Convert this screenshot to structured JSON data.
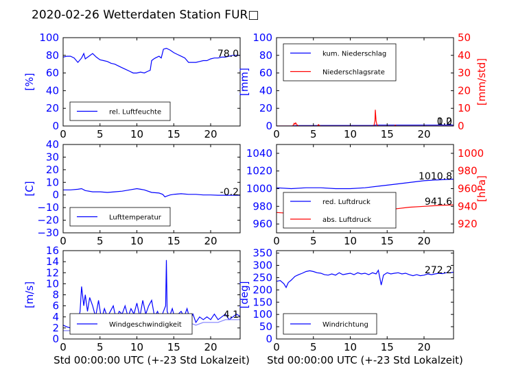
{
  "title": "2020-02-26 Wetterdaten Station FUR□",
  "xlabel": "Std 00:00:00 UTC (+-23 Std Lokalzeit)",
  "colors": {
    "primary": "#0000ff",
    "secondary": "#ff0000",
    "axis": "#000000",
    "light_blue": "#8080ff"
  },
  "chart_data": [
    {
      "id": "humidity",
      "type": "line",
      "ylabel": "[%]",
      "xlim": [
        0,
        24
      ],
      "ylim": [
        0,
        100
      ],
      "xticks": [
        "0",
        "5",
        "10",
        "15",
        "20"
      ],
      "yticks": [
        "0",
        "20",
        "40",
        "60",
        "80",
        "100"
      ],
      "value_label": "78.0",
      "legend": "top-left-bottom",
      "series": [
        {
          "name": "rel. Luftfeuchte",
          "color": "#0000ff",
          "x": [
            0,
            0.5,
            1,
            1.5,
            2,
            2.5,
            2.8,
            3,
            3.5,
            4,
            4.5,
            5,
            5.5,
            6,
            6.5,
            7,
            7.5,
            8,
            8.5,
            9,
            9.5,
            10,
            10.5,
            11,
            11.5,
            11.8,
            12,
            12.3,
            12.5,
            13,
            13.3,
            13.6,
            14,
            14.5,
            15,
            15.5,
            16,
            16.5,
            17,
            17.5,
            18,
            18.5,
            19,
            19.5,
            20,
            20.5,
            21,
            21.5,
            22,
            22.5,
            23,
            24
          ],
          "y": [
            78,
            79,
            79,
            77,
            72,
            77,
            82,
            76,
            79,
            82,
            78,
            75,
            74,
            73,
            71,
            70,
            68,
            66,
            64,
            62,
            60,
            60,
            61,
            60,
            62,
            63,
            74,
            76,
            77,
            79,
            77,
            87,
            88,
            86,
            83,
            81,
            79,
            77,
            72,
            72,
            72,
            73,
            74,
            74,
            76,
            77,
            77,
            78,
            78,
            79,
            80,
            80
          ]
        }
      ]
    },
    {
      "id": "precip",
      "type": "line",
      "ylabel": "[mm]",
      "ylabel_right": "[mm/std]",
      "xlim": [
        0,
        24
      ],
      "ylim": [
        0,
        100
      ],
      "ylim_right": [
        0,
        50
      ],
      "xticks": [
        "0",
        "5",
        "10",
        "15",
        "20"
      ],
      "yticks": [
        "0",
        "20",
        "40",
        "60",
        "80",
        "100"
      ],
      "yticks_right": [
        "0",
        "10",
        "20",
        "30",
        "40",
        "50"
      ],
      "value_label": "1.0",
      "value_label_right": "0.2",
      "legend": "top-left",
      "series": [
        {
          "name": "kum. Niederschlag",
          "color": "#0000ff",
          "axis": "left",
          "x": [
            0,
            2,
            2.5,
            3,
            5,
            5.8,
            6,
            10,
            13,
            13.5,
            14,
            20,
            24
          ],
          "y": [
            0,
            0,
            0.3,
            0.5,
            0.5,
            0.6,
            0.6,
            0.6,
            0.6,
            1.0,
            1.0,
            1.0,
            1.0
          ]
        },
        {
          "name": "Niederschlagsrate",
          "color": "#ff0000",
          "axis": "right",
          "x": [
            0,
            2.2,
            2.4,
            2.5,
            2.6,
            2.8,
            3.0,
            5.5,
            5.7,
            5.8,
            6.0,
            13.2,
            13.35,
            13.4,
            13.5,
            13.6,
            13.8,
            16,
            16.1,
            16.2,
            24
          ],
          "y": [
            0,
            0,
            1.5,
            1.0,
            1.8,
            0.5,
            0,
            0,
            0.8,
            0.2,
            0,
            0,
            3,
            9.2,
            3,
            0.8,
            0,
            0,
            0.5,
            0,
            0
          ]
        }
      ]
    },
    {
      "id": "temperature",
      "type": "line",
      "ylabel": "[C]",
      "xlim": [
        0,
        24
      ],
      "ylim": [
        -30,
        40
      ],
      "xticks": [
        "0",
        "5",
        "10",
        "15",
        "20"
      ],
      "yticks": [
        "−30",
        "−20",
        "−10",
        "0",
        "10",
        "20",
        "30",
        "40"
      ],
      "ytick_values": [
        -30,
        -20,
        -10,
        0,
        10,
        20,
        30,
        40
      ],
      "value_label": "-0.2",
      "legend": "bottom-left",
      "series": [
        {
          "name": "Lufttemperatur",
          "color": "#0000ff",
          "x": [
            0,
            1,
            2,
            2.5,
            3,
            4,
            5,
            6,
            7,
            8,
            9,
            10,
            10.5,
            11,
            12,
            13,
            13.5,
            13.8,
            14,
            14.5,
            15,
            16,
            17,
            18,
            19,
            20,
            21,
            22,
            23,
            24
          ],
          "y": [
            4,
            4,
            4.5,
            5,
            3.5,
            2.5,
            2.5,
            2,
            2.5,
            3,
            4,
            5,
            4.5,
            4,
            2,
            1.5,
            0.5,
            -1.5,
            -1,
            0,
            0.5,
            1,
            0.5,
            0.5,
            0,
            0,
            -0.2,
            -0.2,
            -0.2,
            -0.2
          ]
        }
      ]
    },
    {
      "id": "pressure",
      "type": "line",
      "ylabel_right": "[hPa]",
      "xlim": [
        0,
        24
      ],
      "ylim": [
        950,
        1050
      ],
      "ylim_right": [
        910,
        1010
      ],
      "xticks": [
        "0",
        "5",
        "10",
        "15",
        "20"
      ],
      "yticks": [
        "960",
        "980",
        "1000",
        "1020",
        "1040"
      ],
      "ytick_values": [
        960,
        980,
        1000,
        1020,
        1040
      ],
      "yticks_right": [
        "920",
        "940",
        "960",
        "980",
        "1000"
      ],
      "ytick_values_right": [
        920,
        940,
        960,
        980,
        1000
      ],
      "value_label": "1010.8",
      "value_label_right": "941.6",
      "legend": "bottom-left",
      "series": [
        {
          "name": "red. Luftdruck",
          "color": "#0000ff",
          "axis": "left",
          "x": [
            0,
            2,
            4,
            6,
            8,
            10,
            12,
            14,
            16,
            18,
            20,
            22,
            24
          ],
          "y": [
            1001,
            1000,
            1001,
            1001,
            1000,
            1000,
            1001,
            1003,
            1005,
            1007,
            1009,
            1010,
            1010.8
          ]
        },
        {
          "name": "abs. Luftdruck",
          "color": "#ff0000",
          "axis": "right",
          "x": [
            0,
            2,
            3,
            4,
            6,
            8,
            10,
            12,
            13,
            14,
            16,
            18,
            20,
            22,
            24
          ],
          "y": [
            933,
            932,
            931,
            932,
            933,
            933,
            933,
            934,
            935,
            936,
            937,
            939,
            940,
            941,
            941.6
          ]
        }
      ]
    },
    {
      "id": "windspeed",
      "type": "line",
      "ylabel": "[m/s]",
      "xlim": [
        0,
        24
      ],
      "ylim": [
        0,
        16
      ],
      "xticks": [
        "0",
        "5",
        "10",
        "15",
        "20"
      ],
      "yticks": [
        "0",
        "2",
        "4",
        "6",
        "8",
        "10",
        "12",
        "14",
        "16"
      ],
      "value_label": "4.1",
      "legend": "bottom-left",
      "series": [
        {
          "name": "Windgeschwindigkeit",
          "color": "#0000ff",
          "x": [
            0,
            0.5,
            1,
            1.5,
            2,
            2.3,
            2.5,
            2.8,
            3,
            3.3,
            3.6,
            4,
            4.4,
            4.8,
            5.2,
            5.6,
            6,
            6.4,
            6.8,
            7.2,
            7.6,
            8,
            8.4,
            8.8,
            9.2,
            9.6,
            10,
            10.4,
            10.8,
            11.2,
            11.6,
            12,
            12.4,
            12.8,
            13.2,
            13.6,
            13.9,
            14.0,
            14.1,
            14.4,
            14.8,
            15.2,
            15.6,
            16,
            16.4,
            16.8,
            17.2,
            17.6,
            18,
            18.5,
            19,
            19.5,
            20,
            20.5,
            21,
            21.5,
            22,
            22.5,
            23,
            23.5,
            24
          ],
          "y": [
            2.5,
            2.2,
            2,
            2.5,
            3,
            5,
            9.5,
            6,
            8,
            5,
            7.5,
            6,
            4,
            7,
            3.5,
            5.5,
            4,
            5,
            6,
            3.5,
            5,
            4.5,
            6,
            4,
            5.5,
            4.5,
            6.5,
            4,
            7,
            4.5,
            6,
            7,
            4,
            5,
            3.5,
            5,
            6,
            14.3,
            5,
            4,
            5.5,
            3.5,
            4.5,
            5,
            4,
            5.5,
            3.5,
            4.5,
            3,
            4,
            3.5,
            4,
            3.5,
            4.5,
            3.5,
            4,
            4.5,
            3.5,
            4,
            4.5,
            4.1
          ]
        },
        {
          "name": "",
          "color": "#8080ff",
          "x": [
            0,
            1,
            2,
            2.5,
            3,
            4,
            5,
            6,
            7,
            8,
            9,
            10,
            11,
            12,
            13,
            14,
            15,
            16,
            17,
            18,
            19,
            20,
            21,
            22,
            23,
            24
          ],
          "y": [
            1.5,
            1.5,
            2,
            3,
            3.5,
            3,
            2.5,
            3,
            3.5,
            3,
            3.5,
            3.5,
            3.5,
            4,
            3,
            3.5,
            3,
            3,
            3,
            2.5,
            3,
            3,
            3,
            3.5,
            3.5,
            3.5
          ]
        }
      ]
    },
    {
      "id": "winddir",
      "type": "line",
      "ylabel": "[deg]",
      "xlim": [
        0,
        24
      ],
      "ylim": [
        0,
        360
      ],
      "xticks": [
        "0",
        "5",
        "10",
        "15",
        "20"
      ],
      "yticks": [
        "0",
        "50",
        "100",
        "150",
        "200",
        "250",
        "300",
        "350"
      ],
      "value_label": "272.2",
      "legend": "bottom-left",
      "series": [
        {
          "name": "Windrichtung",
          "color": "#0000ff",
          "x": [
            0,
            0.5,
            1,
            1.3,
            1.6,
            2,
            2.5,
            3,
            3.5,
            4,
            4.5,
            5,
            5.5,
            6,
            6.5,
            7,
            7.5,
            8,
            8.5,
            9,
            9.5,
            10,
            10.5,
            11,
            11.5,
            12,
            12.5,
            13,
            13.5,
            13.8,
            14,
            14.2,
            14.5,
            15,
            15.5,
            16,
            16.5,
            17,
            17.5,
            18,
            18.5,
            19,
            19.5,
            20,
            20.5,
            21,
            21.5,
            22,
            22.5,
            23,
            23.5,
            24
          ],
          "y": [
            235,
            238,
            225,
            210,
            230,
            240,
            255,
            262,
            268,
            275,
            278,
            275,
            270,
            268,
            262,
            260,
            265,
            260,
            270,
            262,
            265,
            268,
            262,
            270,
            265,
            268,
            262,
            270,
            265,
            280,
            250,
            220,
            260,
            270,
            265,
            268,
            270,
            265,
            268,
            262,
            258,
            262,
            258,
            260,
            265,
            262,
            265,
            268,
            266,
            270,
            270,
            272
          ]
        }
      ]
    }
  ]
}
